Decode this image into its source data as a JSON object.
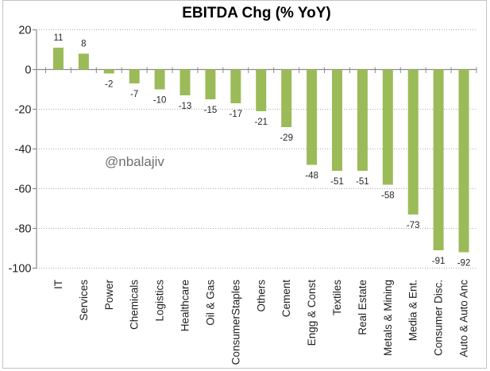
{
  "chart_data": {
    "type": "bar",
    "title": "EBITDA Chg (% YoY)",
    "watermark": "@nbalajiv",
    "categories": [
      "IT",
      "Services",
      "Power",
      "Chemicals",
      "Logistics",
      "Healthcare",
      "Oil & Gas",
      "ConsumerStaples",
      "Others",
      "Cement",
      "Engg & Const",
      "Textiles",
      "Real Estate",
      "Metals & Mining",
      "Media & Ent.",
      "Consumer Disc.",
      "Auto & Auto Anc"
    ],
    "values": [
      11,
      8,
      -2,
      -7,
      -10,
      -13,
      -15,
      -17,
      -21,
      -29,
      -48,
      -51,
      -51,
      -58,
      -73,
      -91,
      -92
    ],
    "yticks": [
      20,
      0,
      -20,
      -40,
      -60,
      -80,
      -100
    ],
    "ylim": [
      -100,
      20
    ],
    "ytick_step": 20,
    "grid": true,
    "gridline_style": "dotted",
    "legend": "none",
    "data_labels": "outside-end",
    "colors": {
      "bar": "#9BBB59",
      "gridline": "#ABABAB",
      "axis": "#8C8C8C",
      "label_text": "#262626",
      "axis_text": "#1F1F1F",
      "title_text": "#000000",
      "watermark_text": "#6F6F6F",
      "border": "#C3C3C3"
    }
  }
}
